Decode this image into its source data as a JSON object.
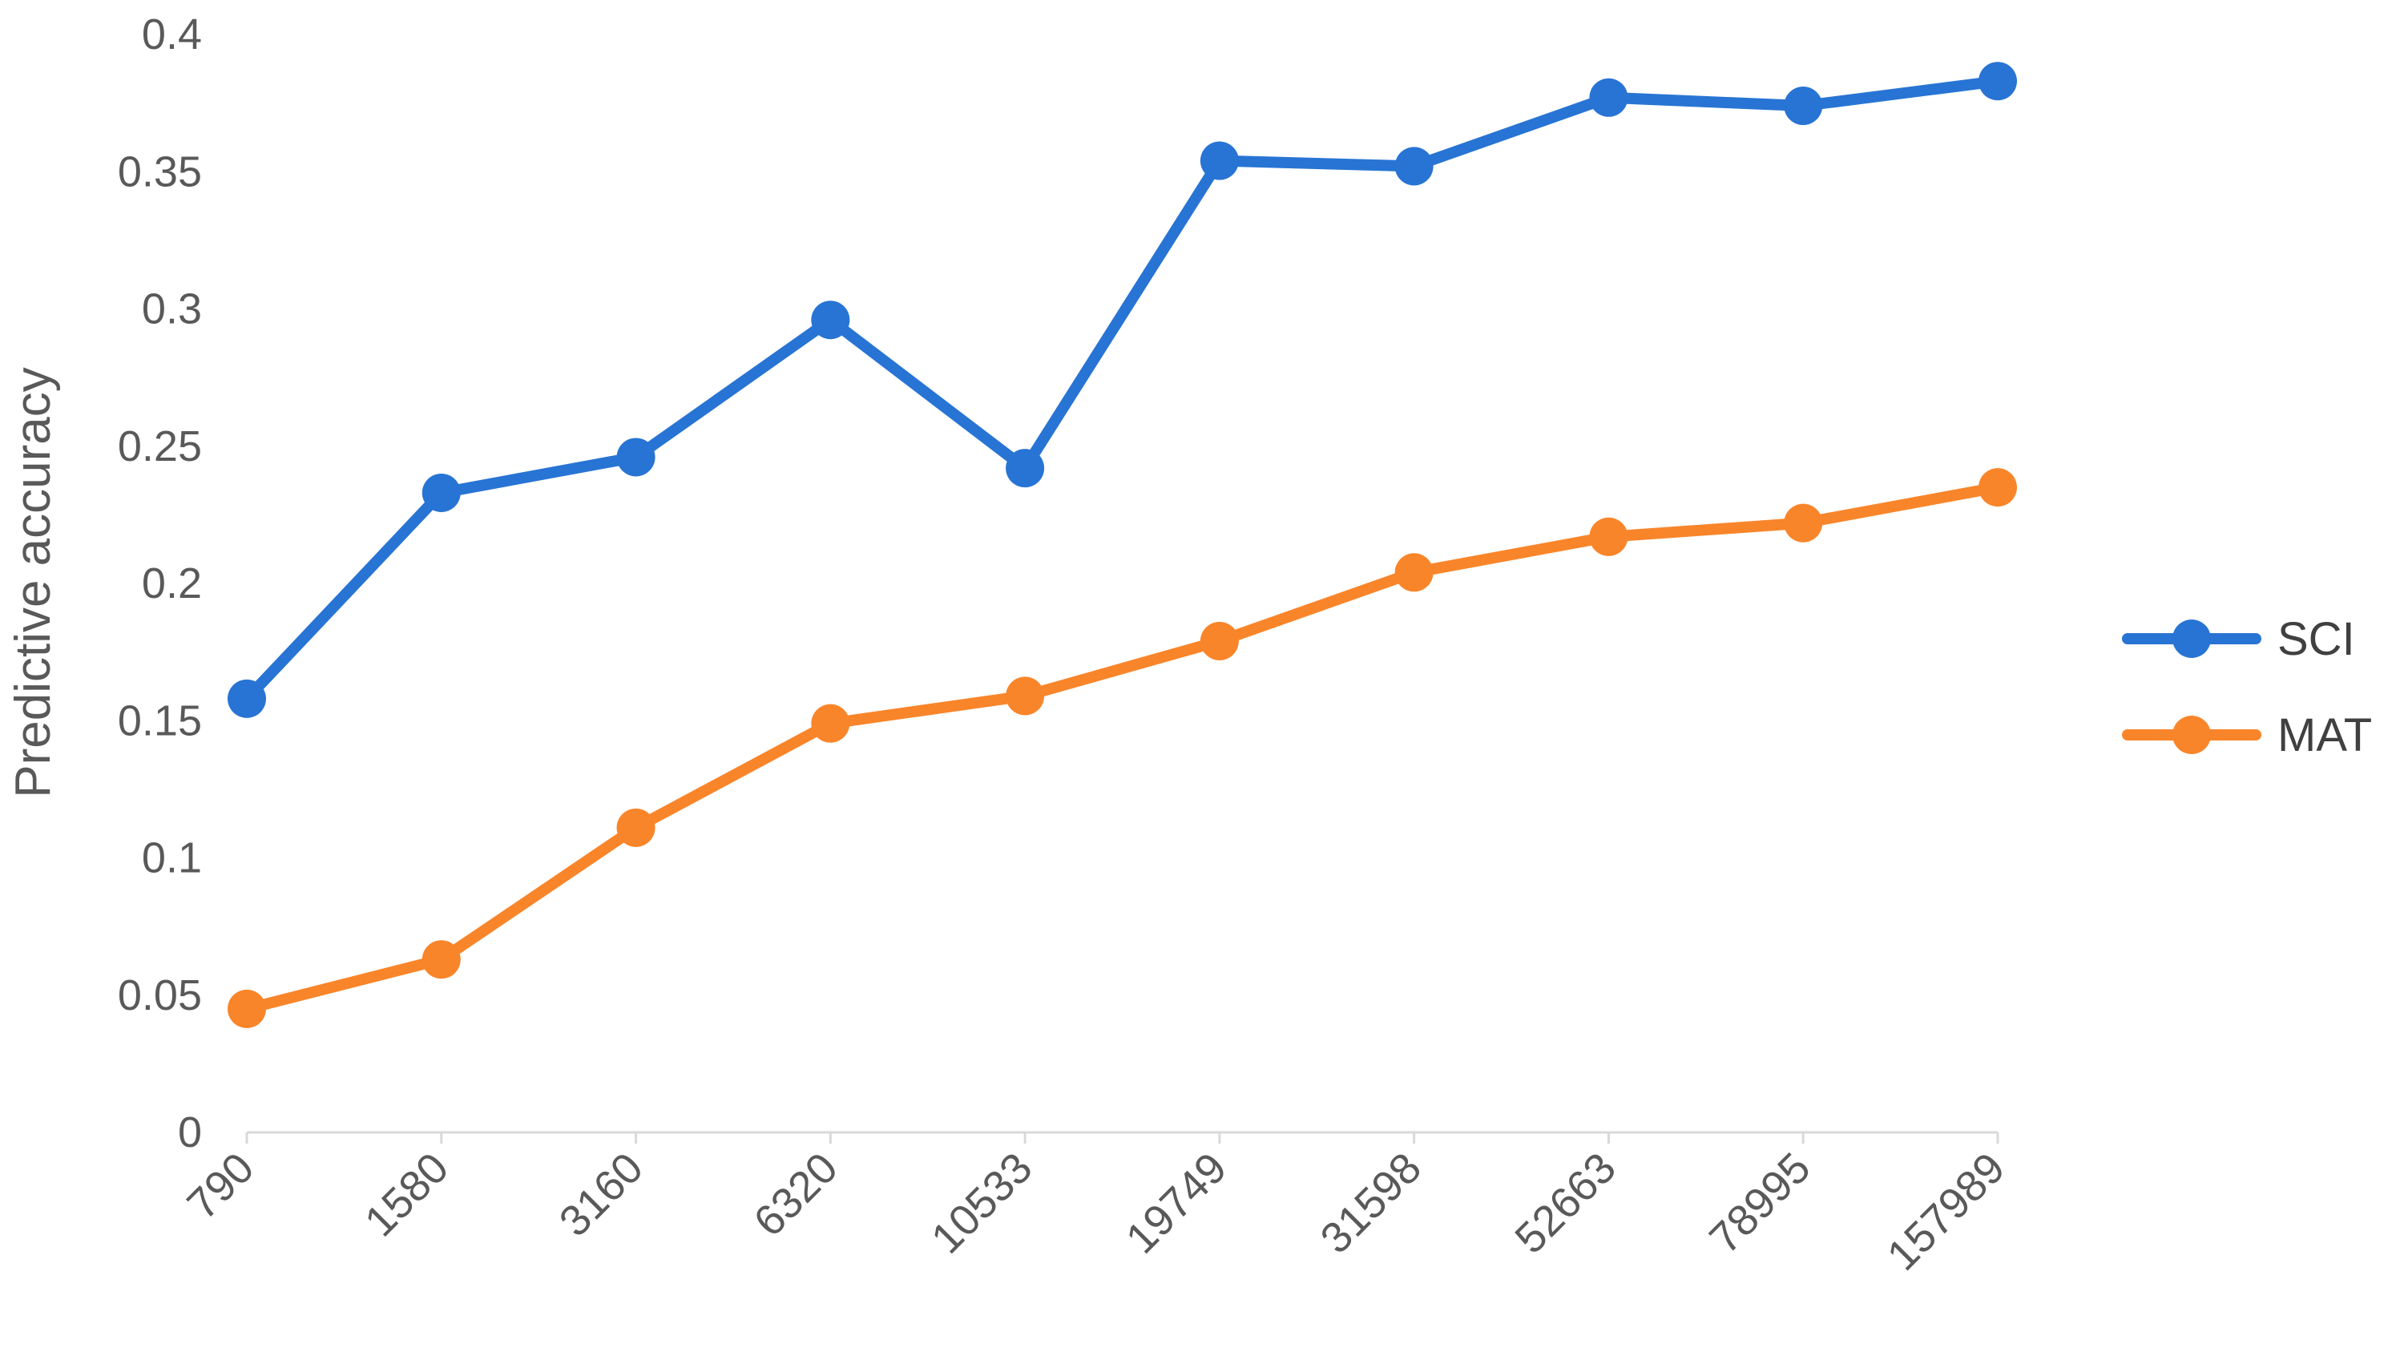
{
  "chart_data": {
    "type": "line",
    "title": "",
    "xlabel": "",
    "ylabel": "Predictive accuracy",
    "categories": [
      "790",
      "1580",
      "3160",
      "6320",
      "10533",
      "19749",
      "31598",
      "52663",
      "78995",
      "157989"
    ],
    "ylim": [
      0,
      0.4
    ],
    "yticks": [
      0,
      0.05,
      0.1,
      0.15,
      0.2,
      0.25,
      0.3,
      0.35,
      0.4
    ],
    "ytick_labels": [
      "0",
      "0.05",
      "0.1",
      "0.15",
      "0.2",
      "0.25",
      "0.3",
      "0.35",
      "0.4"
    ],
    "grid": false,
    "legend_position": "right",
    "series": [
      {
        "name": "SCI",
        "color": "#2874D4",
        "values": [
          0.158,
          0.233,
          0.246,
          0.296,
          0.242,
          0.354,
          0.352,
          0.377,
          0.374,
          0.383
        ]
      },
      {
        "name": "MAT",
        "color": "#F9852A",
        "values": [
          0.045,
          0.063,
          0.111,
          0.149,
          0.159,
          0.179,
          0.204,
          0.217,
          0.222,
          0.235
        ]
      }
    ]
  }
}
